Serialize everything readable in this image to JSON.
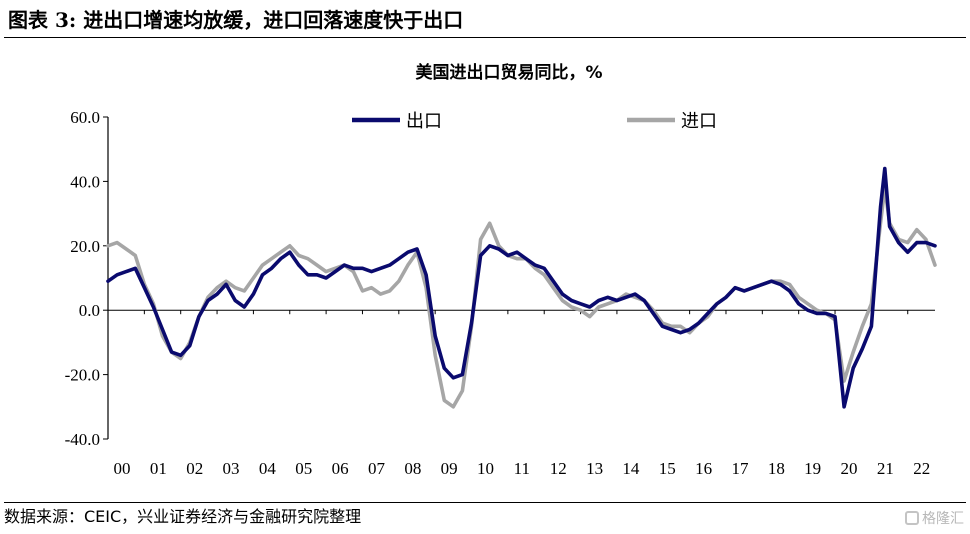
{
  "figure": {
    "title_prefix": "图表",
    "number": "3:",
    "title_text": "进出口增速均放缓，进口回落速度快于出口"
  },
  "footer": {
    "source": "数据来源：CEIC，兴业证券经济与金融研究院整理",
    "watermark": "格隆汇"
  },
  "colors": {
    "export": "#0a0a6e",
    "import": "#a6a6a6",
    "axis": "#000000"
  },
  "chart_data": {
    "type": "line",
    "title": "美国进出口贸易同比，%",
    "xlabel": "",
    "ylabel": "",
    "ylim": [
      -40,
      60
    ],
    "yticks": [
      "60.0",
      "40.0",
      "20.0",
      "0.0",
      "-20.0",
      "-40.0"
    ],
    "ytick_values": [
      60,
      40,
      20,
      0,
      -20,
      -40
    ],
    "xlim": [
      2000.0,
      2022.75
    ],
    "xticks": [
      "00",
      "01",
      "02",
      "03",
      "04",
      "05",
      "06",
      "07",
      "08",
      "09",
      "10",
      "11",
      "12",
      "13",
      "14",
      "15",
      "16",
      "17",
      "18",
      "19",
      "20",
      "21",
      "22"
    ],
    "grid": false,
    "legend": "top",
    "series": [
      {
        "name": "出口",
        "color": "#0a0a6e",
        "points": [
          [
            2000.0,
            9
          ],
          [
            2000.25,
            11
          ],
          [
            2000.5,
            12
          ],
          [
            2000.75,
            13
          ],
          [
            2001.0,
            7
          ],
          [
            2001.25,
            1
          ],
          [
            2001.5,
            -6
          ],
          [
            2001.75,
            -13
          ],
          [
            2002.0,
            -14
          ],
          [
            2002.25,
            -11
          ],
          [
            2002.5,
            -2
          ],
          [
            2002.75,
            3
          ],
          [
            2003.0,
            5
          ],
          [
            2003.25,
            8
          ],
          [
            2003.5,
            3
          ],
          [
            2003.75,
            1
          ],
          [
            2004.0,
            5
          ],
          [
            2004.25,
            11
          ],
          [
            2004.5,
            13
          ],
          [
            2004.75,
            16
          ],
          [
            2005.0,
            18
          ],
          [
            2005.25,
            14
          ],
          [
            2005.5,
            11
          ],
          [
            2005.75,
            11
          ],
          [
            2006.0,
            10
          ],
          [
            2006.25,
            12
          ],
          [
            2006.5,
            14
          ],
          [
            2006.75,
            13
          ],
          [
            2007.0,
            13
          ],
          [
            2007.25,
            12
          ],
          [
            2007.5,
            13
          ],
          [
            2007.75,
            14
          ],
          [
            2008.0,
            16
          ],
          [
            2008.25,
            18
          ],
          [
            2008.5,
            19
          ],
          [
            2008.75,
            11
          ],
          [
            2009.0,
            -8
          ],
          [
            2009.25,
            -18
          ],
          [
            2009.5,
            -21
          ],
          [
            2009.75,
            -20
          ],
          [
            2010.0,
            -4
          ],
          [
            2010.25,
            17
          ],
          [
            2010.5,
            20
          ],
          [
            2010.75,
            19
          ],
          [
            2011.0,
            17
          ],
          [
            2011.25,
            18
          ],
          [
            2011.5,
            16
          ],
          [
            2011.75,
            14
          ],
          [
            2012.0,
            13
          ],
          [
            2012.25,
            9
          ],
          [
            2012.5,
            5
          ],
          [
            2012.75,
            3
          ],
          [
            2013.0,
            2
          ],
          [
            2013.25,
            1
          ],
          [
            2013.5,
            3
          ],
          [
            2013.75,
            4
          ],
          [
            2014.0,
            3
          ],
          [
            2014.25,
            4
          ],
          [
            2014.5,
            5
          ],
          [
            2014.75,
            3
          ],
          [
            2015.0,
            -1
          ],
          [
            2015.25,
            -5
          ],
          [
            2015.5,
            -6
          ],
          [
            2015.75,
            -7
          ],
          [
            2016.0,
            -6
          ],
          [
            2016.25,
            -4
          ],
          [
            2016.5,
            -1
          ],
          [
            2016.75,
            2
          ],
          [
            2017.0,
            4
          ],
          [
            2017.25,
            7
          ],
          [
            2017.5,
            6
          ],
          [
            2017.75,
            7
          ],
          [
            2018.0,
            8
          ],
          [
            2018.25,
            9
          ],
          [
            2018.5,
            8
          ],
          [
            2018.75,
            6
          ],
          [
            2019.0,
            2
          ],
          [
            2019.25,
            0
          ],
          [
            2019.5,
            -1
          ],
          [
            2019.75,
            -1
          ],
          [
            2020.0,
            -2
          ],
          [
            2020.25,
            -30
          ],
          [
            2020.5,
            -18
          ],
          [
            2020.75,
            -12
          ],
          [
            2021.0,
            -5
          ],
          [
            2021.25,
            32
          ],
          [
            2021.37,
            44
          ],
          [
            2021.5,
            26
          ],
          [
            2021.75,
            21
          ],
          [
            2022.0,
            18
          ],
          [
            2022.25,
            21
          ],
          [
            2022.5,
            21
          ],
          [
            2022.75,
            20
          ]
        ]
      },
      {
        "name": "进口",
        "color": "#a6a6a6",
        "points": [
          [
            2000.0,
            20
          ],
          [
            2000.25,
            21
          ],
          [
            2000.5,
            19
          ],
          [
            2000.75,
            17
          ],
          [
            2001.0,
            8
          ],
          [
            2001.25,
            2
          ],
          [
            2001.5,
            -8
          ],
          [
            2001.75,
            -13
          ],
          [
            2002.0,
            -15
          ],
          [
            2002.25,
            -10
          ],
          [
            2002.5,
            -2
          ],
          [
            2002.75,
            4
          ],
          [
            2003.0,
            7
          ],
          [
            2003.25,
            9
          ],
          [
            2003.5,
            7
          ],
          [
            2003.75,
            6
          ],
          [
            2004.0,
            10
          ],
          [
            2004.25,
            14
          ],
          [
            2004.5,
            16
          ],
          [
            2004.75,
            18
          ],
          [
            2005.0,
            20
          ],
          [
            2005.25,
            17
          ],
          [
            2005.5,
            16
          ],
          [
            2005.75,
            14
          ],
          [
            2006.0,
            12
          ],
          [
            2006.25,
            13
          ],
          [
            2006.5,
            14
          ],
          [
            2006.75,
            12
          ],
          [
            2007.0,
            6
          ],
          [
            2007.25,
            7
          ],
          [
            2007.5,
            5
          ],
          [
            2007.75,
            6
          ],
          [
            2008.0,
            9
          ],
          [
            2008.25,
            14
          ],
          [
            2008.5,
            18
          ],
          [
            2008.75,
            7
          ],
          [
            2009.0,
            -14
          ],
          [
            2009.25,
            -28
          ],
          [
            2009.5,
            -30
          ],
          [
            2009.75,
            -25
          ],
          [
            2010.0,
            -5
          ],
          [
            2010.25,
            22
          ],
          [
            2010.5,
            27
          ],
          [
            2010.75,
            20
          ],
          [
            2011.0,
            17
          ],
          [
            2011.25,
            16
          ],
          [
            2011.5,
            16
          ],
          [
            2011.75,
            13
          ],
          [
            2012.0,
            11
          ],
          [
            2012.25,
            7
          ],
          [
            2012.5,
            3
          ],
          [
            2012.75,
            1
          ],
          [
            2013.0,
            0
          ],
          [
            2013.25,
            -2
          ],
          [
            2013.5,
            1
          ],
          [
            2013.75,
            2
          ],
          [
            2014.0,
            3
          ],
          [
            2014.25,
            5
          ],
          [
            2014.5,
            4
          ],
          [
            2014.75,
            3
          ],
          [
            2015.0,
            0
          ],
          [
            2015.25,
            -4
          ],
          [
            2015.5,
            -5
          ],
          [
            2015.75,
            -5
          ],
          [
            2016.0,
            -7
          ],
          [
            2016.25,
            -4
          ],
          [
            2016.5,
            -2
          ],
          [
            2016.75,
            2
          ],
          [
            2017.0,
            4
          ],
          [
            2017.25,
            7
          ],
          [
            2017.5,
            6
          ],
          [
            2017.75,
            7
          ],
          [
            2018.0,
            8
          ],
          [
            2018.25,
            9
          ],
          [
            2018.5,
            9
          ],
          [
            2018.75,
            8
          ],
          [
            2019.0,
            4
          ],
          [
            2019.25,
            2
          ],
          [
            2019.5,
            0
          ],
          [
            2019.75,
            -1
          ],
          [
            2020.0,
            -3
          ],
          [
            2020.25,
            -22
          ],
          [
            2020.5,
            -13
          ],
          [
            2020.75,
            -5
          ],
          [
            2021.0,
            2
          ],
          [
            2021.25,
            27
          ],
          [
            2021.37,
            38
          ],
          [
            2021.5,
            27
          ],
          [
            2021.75,
            22
          ],
          [
            2022.0,
            21
          ],
          [
            2022.25,
            25
          ],
          [
            2022.5,
            22
          ],
          [
            2022.75,
            14
          ]
        ]
      }
    ]
  }
}
